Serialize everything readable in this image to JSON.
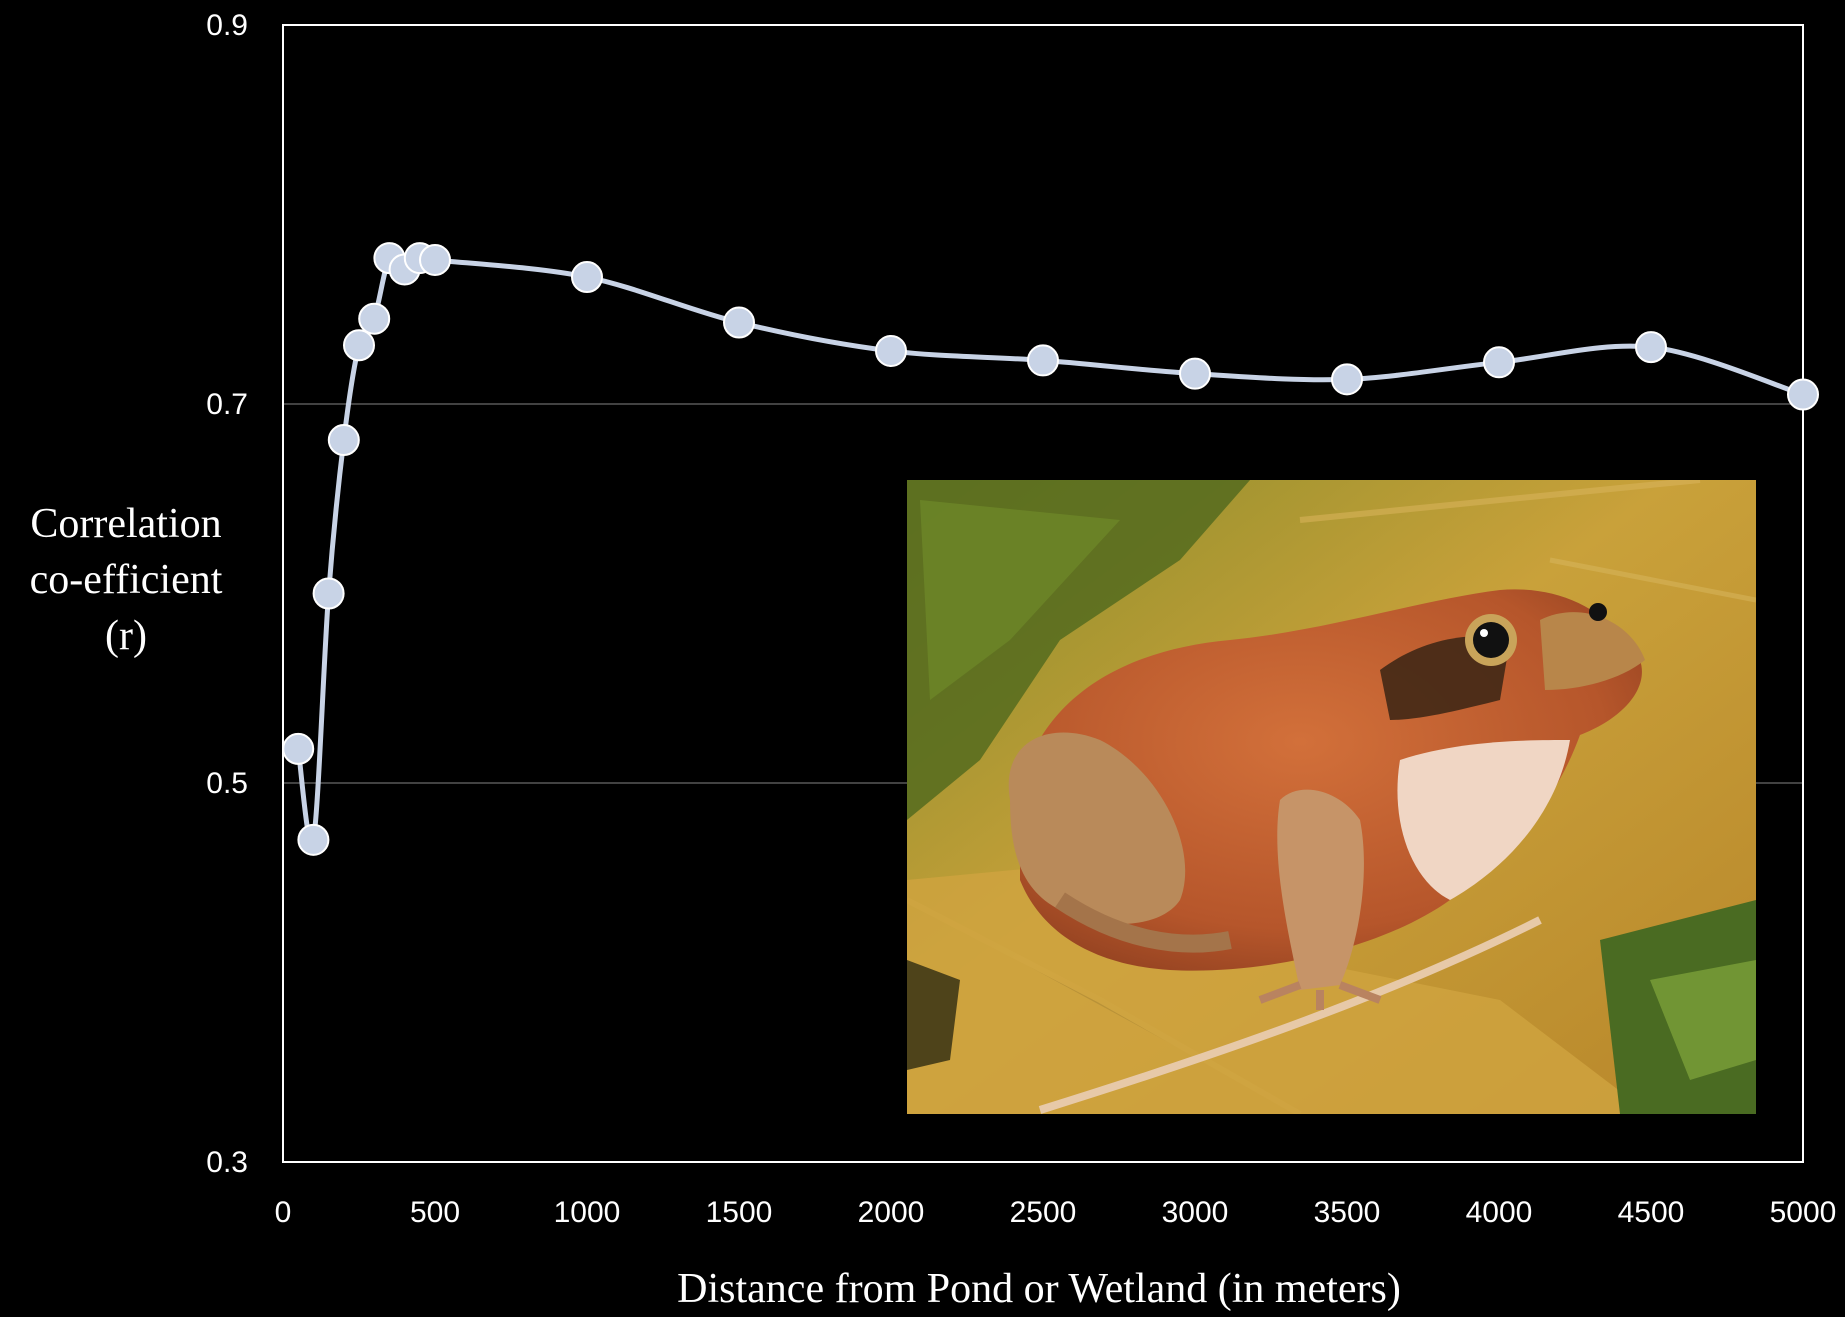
{
  "chart_data": {
    "type": "line",
    "title": "",
    "xlabel": "Distance from Pond or Wetland (in meters)",
    "ylabel_lines": [
      "Correlation",
      "co-efficient",
      "(r)"
    ],
    "xlim": [
      0,
      5000
    ],
    "ylim": [
      0.3,
      0.9
    ],
    "x_ticks": [
      0,
      500,
      1000,
      1500,
      2000,
      2500,
      3000,
      3500,
      4000,
      4500,
      5000
    ],
    "x_tick_labels": [
      "0",
      "500",
      "1000",
      "1500",
      "2000",
      "2500",
      "3000",
      "3500",
      "4000",
      "4500",
      "5000"
    ],
    "y_ticks": [
      0.3,
      0.5,
      0.7,
      0.9
    ],
    "y_tick_labels": [
      "0.3",
      "0.5",
      "0.7",
      "0.9"
    ],
    "grid": "horizontal",
    "legend": "none",
    "series": [
      {
        "x": [
          50,
          100,
          150,
          200,
          250,
          300,
          350,
          400,
          450,
          500,
          1000,
          1500,
          2000,
          2500,
          3000,
          3500,
          4000,
          4500,
          5000
        ],
        "y": [
          0.518,
          0.47,
          0.6,
          0.681,
          0.731,
          0.745,
          0.777,
          0.771,
          0.777,
          0.776,
          0.767,
          0.743,
          0.728,
          0.723,
          0.716,
          0.713,
          0.722,
          0.73,
          0.705
        ]
      }
    ],
    "colors": {
      "background": "#000000",
      "axis": "#ffffff",
      "gridline": "#595959",
      "line": "#c8d3e6",
      "marker_fill": "#c8d3e6",
      "marker_stroke": "#ffffff"
    },
    "inset_image": "wood-frog-photo"
  }
}
